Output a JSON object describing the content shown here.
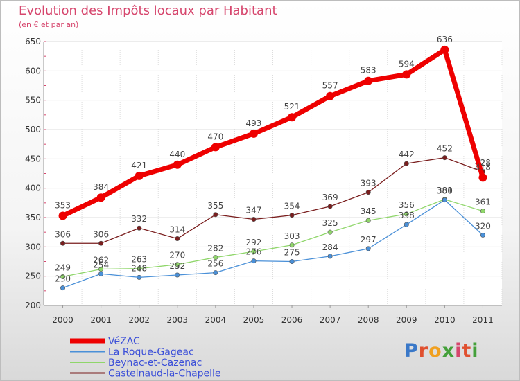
{
  "title": "Evolution des Impôts locaux par Habitant",
  "subtitle": "(en € et par an)",
  "logo_text": "Proxiti",
  "chart_data": {
    "type": "line",
    "x": [
      "2000",
      "2001",
      "2002",
      "2003",
      "2004",
      "2005",
      "2006",
      "2007",
      "2008",
      "2009",
      "2010",
      "2011"
    ],
    "ylim": [
      200,
      650
    ],
    "yticks": [
      200,
      250,
      300,
      350,
      400,
      450,
      500,
      550,
      600,
      650
    ],
    "grid": true,
    "legend_position": "bottom-left",
    "series": [
      {
        "name": "VéZAC",
        "color": "#ee0000",
        "values": [
          353,
          384,
          421,
          440,
          470,
          493,
          521,
          557,
          583,
          594,
          636,
          418
        ]
      },
      {
        "name": "La Roque-Gageac",
        "color": "#4a90d8",
        "values": [
          230,
          254,
          248,
          252,
          256,
          276,
          275,
          284,
          297,
          338,
          380,
          320
        ]
      },
      {
        "name": "Beynac-et-Cazenac",
        "color": "#8fd66a",
        "values": [
          249,
          262,
          263,
          270,
          282,
          292,
          303,
          325,
          345,
          356,
          381,
          361
        ]
      },
      {
        "name": "Castelnaud-la-Chapelle",
        "color": "#7a1e1e",
        "values": [
          306,
          306,
          332,
          314,
          355,
          347,
          354,
          369,
          393,
          442,
          452,
          428
        ]
      }
    ]
  }
}
